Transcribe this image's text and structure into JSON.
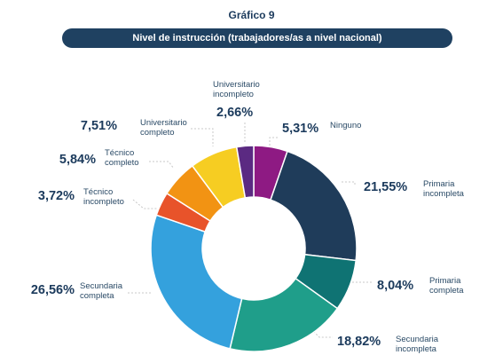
{
  "header": {
    "chart_number": "Gráfico 9",
    "title": "Nivel de instrucción (trabajadores/as a nivel nacional)"
  },
  "chart_data": {
    "type": "pie",
    "donut": true,
    "title": "Nivel de instrucción (trabajadores/as a nivel nacional)",
    "slices": [
      {
        "name": "Ninguno",
        "label_lines": [
          "Ninguno"
        ],
        "value": 5.31,
        "value_label": "5,31%",
        "color": "#8e1a83"
      },
      {
        "name": "Primaria incompleta",
        "label_lines": [
          "Primaria",
          "incompleta"
        ],
        "value": 21.55,
        "value_label": "21,55%",
        "color": "#1f3c5a"
      },
      {
        "name": "Primaria completa",
        "label_lines": [
          "Primaria",
          "completa"
        ],
        "value": 8.04,
        "value_label": "8,04%",
        "color": "#0f7373"
      },
      {
        "name": "Secundaria incompleta",
        "label_lines": [
          "Secundaria",
          "incompleta"
        ],
        "value": 18.82,
        "value_label": "18,82%",
        "color": "#1f9e8a"
      },
      {
        "name": "Secundaria completa",
        "label_lines": [
          "Secundaria",
          "completa"
        ],
        "value": 26.56,
        "value_label": "26,56%",
        "color": "#34a1dd"
      },
      {
        "name": "Técnico incompleto",
        "label_lines": [
          "Técnico",
          "incompleto"
        ],
        "value": 3.72,
        "value_label": "3,72%",
        "color": "#e8532a"
      },
      {
        "name": "Técnico completo",
        "label_lines": [
          "Técnico",
          "completo"
        ],
        "value": 5.84,
        "value_label": "5,84%",
        "color": "#f29313"
      },
      {
        "name": "Universitario completo",
        "label_lines": [
          "Universitario",
          "completo"
        ],
        "value": 7.51,
        "value_label": "7,51%",
        "color": "#f6cd22"
      },
      {
        "name": "Universitario incompleto",
        "label_lines": [
          "Universitario",
          "incompleto"
        ],
        "value": 2.66,
        "value_label": "2,66%",
        "color": "#5b2a82"
      }
    ]
  }
}
